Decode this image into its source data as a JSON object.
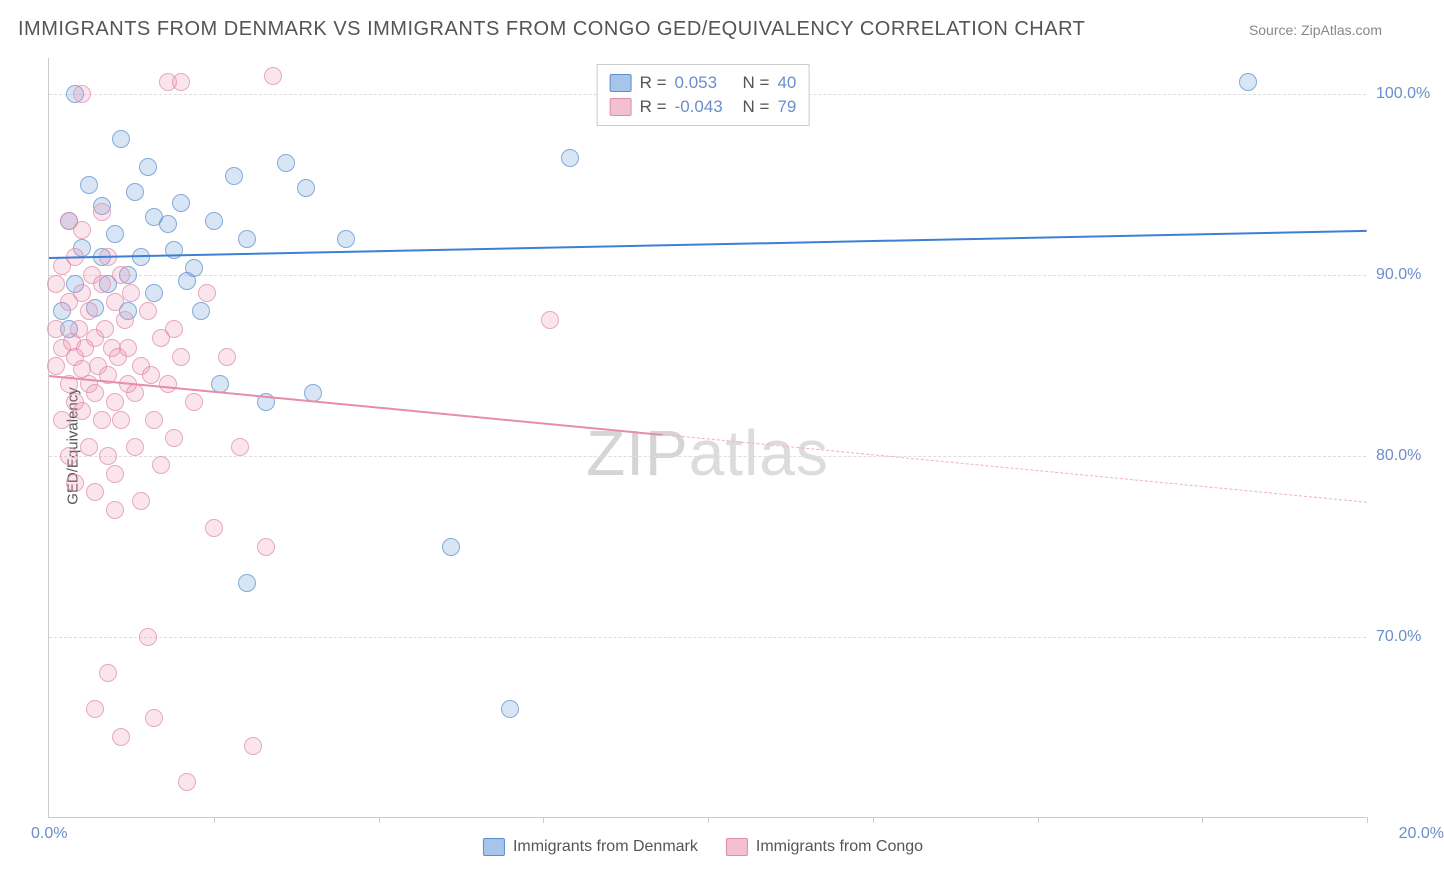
{
  "title": "IMMIGRANTS FROM DENMARK VS IMMIGRANTS FROM CONGO GED/EQUIVALENCY CORRELATION CHART",
  "source": "Source: ZipAtlas.com",
  "watermark_bold": "ZIP",
  "watermark_thin": "atlas",
  "chart": {
    "type": "scatter",
    "ylabel": "GED/Equivalency",
    "xlim": [
      0,
      20
    ],
    "ylim": [
      60,
      102
    ],
    "xtick_min": "0.0%",
    "xtick_max": "20.0%",
    "xtick_marks": [
      2.5,
      5,
      7.5,
      10,
      12.5,
      15,
      17.5,
      20
    ],
    "yticks": [
      {
        "v": 70,
        "label": "70.0%"
      },
      {
        "v": 80,
        "label": "80.0%"
      },
      {
        "v": 90,
        "label": "90.0%"
      },
      {
        "v": 100,
        "label": "100.0%"
      }
    ],
    "series": [
      {
        "name": "Immigrants from Denmark",
        "color_fill": "rgba(108,158,217,0.35)",
        "color_stroke": "#5b8dd0",
        "color_line": "#3d7fd6",
        "R_label": "R =",
        "R": "0.053",
        "N_label": "N =",
        "N": "40",
        "trend": {
          "x1": 0,
          "y1": 91.0,
          "x2": 20,
          "y2": 92.5,
          "dash_from": 20
        },
        "points": [
          [
            0.2,
            88.0
          ],
          [
            0.3,
            93.0
          ],
          [
            0.3,
            87.0
          ],
          [
            0.4,
            100.0
          ],
          [
            0.4,
            89.5
          ],
          [
            0.5,
            91.5
          ],
          [
            0.6,
            95.0
          ],
          [
            0.7,
            88.2
          ],
          [
            0.8,
            93.8
          ],
          [
            0.8,
            91.0
          ],
          [
            0.9,
            89.5
          ],
          [
            1.0,
            92.3
          ],
          [
            1.1,
            97.5
          ],
          [
            1.2,
            90.0
          ],
          [
            1.2,
            88.0
          ],
          [
            1.3,
            94.6
          ],
          [
            1.4,
            91.0
          ],
          [
            1.5,
            96.0
          ],
          [
            1.6,
            89.0
          ],
          [
            1.6,
            93.2
          ],
          [
            1.8,
            92.8
          ],
          [
            1.9,
            91.4
          ],
          [
            2.0,
            94.0
          ],
          [
            2.1,
            89.7
          ],
          [
            2.2,
            90.4
          ],
          [
            2.3,
            88.0
          ],
          [
            2.5,
            93.0
          ],
          [
            2.6,
            84.0
          ],
          [
            2.8,
            95.5
          ],
          [
            3.0,
            92.0
          ],
          [
            3.0,
            73.0
          ],
          [
            3.3,
            83.0
          ],
          [
            3.6,
            96.2
          ],
          [
            3.9,
            94.8
          ],
          [
            4.0,
            83.5
          ],
          [
            4.5,
            92.0
          ],
          [
            6.1,
            75.0
          ],
          [
            7.0,
            66.0
          ],
          [
            7.9,
            96.5
          ],
          [
            18.2,
            100.7
          ]
        ]
      },
      {
        "name": "Immigrants from Congo",
        "color_fill": "rgba(232,140,168,0.3)",
        "color_stroke": "#e08ca8",
        "color_line": "#e88ca8",
        "R_label": "R =",
        "R": "-0.043",
        "N_label": "N =",
        "N": "79",
        "trend": {
          "x1": 0,
          "y1": 84.5,
          "x2": 20,
          "y2": 77.5,
          "dash_from": 9.3
        },
        "points": [
          [
            0.1,
            85.0
          ],
          [
            0.1,
            87.0
          ],
          [
            0.1,
            89.5
          ],
          [
            0.2,
            86.0
          ],
          [
            0.2,
            82.0
          ],
          [
            0.2,
            90.5
          ],
          [
            0.3,
            84.0
          ],
          [
            0.3,
            88.5
          ],
          [
            0.3,
            80.0
          ],
          [
            0.3,
            93.0
          ],
          [
            0.35,
            86.3
          ],
          [
            0.4,
            83.0
          ],
          [
            0.4,
            85.5
          ],
          [
            0.4,
            91.0
          ],
          [
            0.4,
            78.5
          ],
          [
            0.45,
            87.0
          ],
          [
            0.5,
            82.5
          ],
          [
            0.5,
            89.0
          ],
          [
            0.5,
            84.8
          ],
          [
            0.5,
            92.5
          ],
          [
            0.5,
            100.0
          ],
          [
            0.55,
            86.0
          ],
          [
            0.6,
            80.5
          ],
          [
            0.6,
            88.0
          ],
          [
            0.6,
            84.0
          ],
          [
            0.65,
            90.0
          ],
          [
            0.7,
            83.5
          ],
          [
            0.7,
            86.5
          ],
          [
            0.7,
            78.0
          ],
          [
            0.7,
            66.0
          ],
          [
            0.75,
            85.0
          ],
          [
            0.8,
            82.0
          ],
          [
            0.8,
            89.5
          ],
          [
            0.8,
            93.5
          ],
          [
            0.85,
            87.0
          ],
          [
            0.9,
            84.5
          ],
          [
            0.9,
            80.0
          ],
          [
            0.9,
            91.0
          ],
          [
            0.9,
            68.0
          ],
          [
            0.95,
            86.0
          ],
          [
            1.0,
            83.0
          ],
          [
            1.0,
            88.5
          ],
          [
            1.0,
            77.0
          ],
          [
            1.0,
            79.0
          ],
          [
            1.05,
            85.5
          ],
          [
            1.1,
            82.0
          ],
          [
            1.1,
            90.0
          ],
          [
            1.1,
            64.5
          ],
          [
            1.15,
            87.5
          ],
          [
            1.2,
            84.0
          ],
          [
            1.2,
            86.0
          ],
          [
            1.25,
            89.0
          ],
          [
            1.3,
            80.5
          ],
          [
            1.3,
            83.5
          ],
          [
            1.4,
            85.0
          ],
          [
            1.4,
            77.5
          ],
          [
            1.5,
            88.0
          ],
          [
            1.5,
            70.0
          ],
          [
            1.55,
            84.5
          ],
          [
            1.6,
            65.5
          ],
          [
            1.6,
            82.0
          ],
          [
            1.7,
            86.5
          ],
          [
            1.7,
            79.5
          ],
          [
            1.8,
            84.0
          ],
          [
            1.8,
            100.7
          ],
          [
            1.9,
            87.0
          ],
          [
            1.9,
            81.0
          ],
          [
            2.0,
            85.5
          ],
          [
            2.0,
            100.7
          ],
          [
            2.1,
            62.0
          ],
          [
            2.2,
            83.0
          ],
          [
            2.4,
            89.0
          ],
          [
            2.5,
            76.0
          ],
          [
            2.7,
            85.5
          ],
          [
            2.9,
            80.5
          ],
          [
            3.1,
            64.0
          ],
          [
            3.3,
            75.0
          ],
          [
            3.4,
            101.0
          ],
          [
            7.6,
            87.5
          ]
        ]
      }
    ]
  }
}
